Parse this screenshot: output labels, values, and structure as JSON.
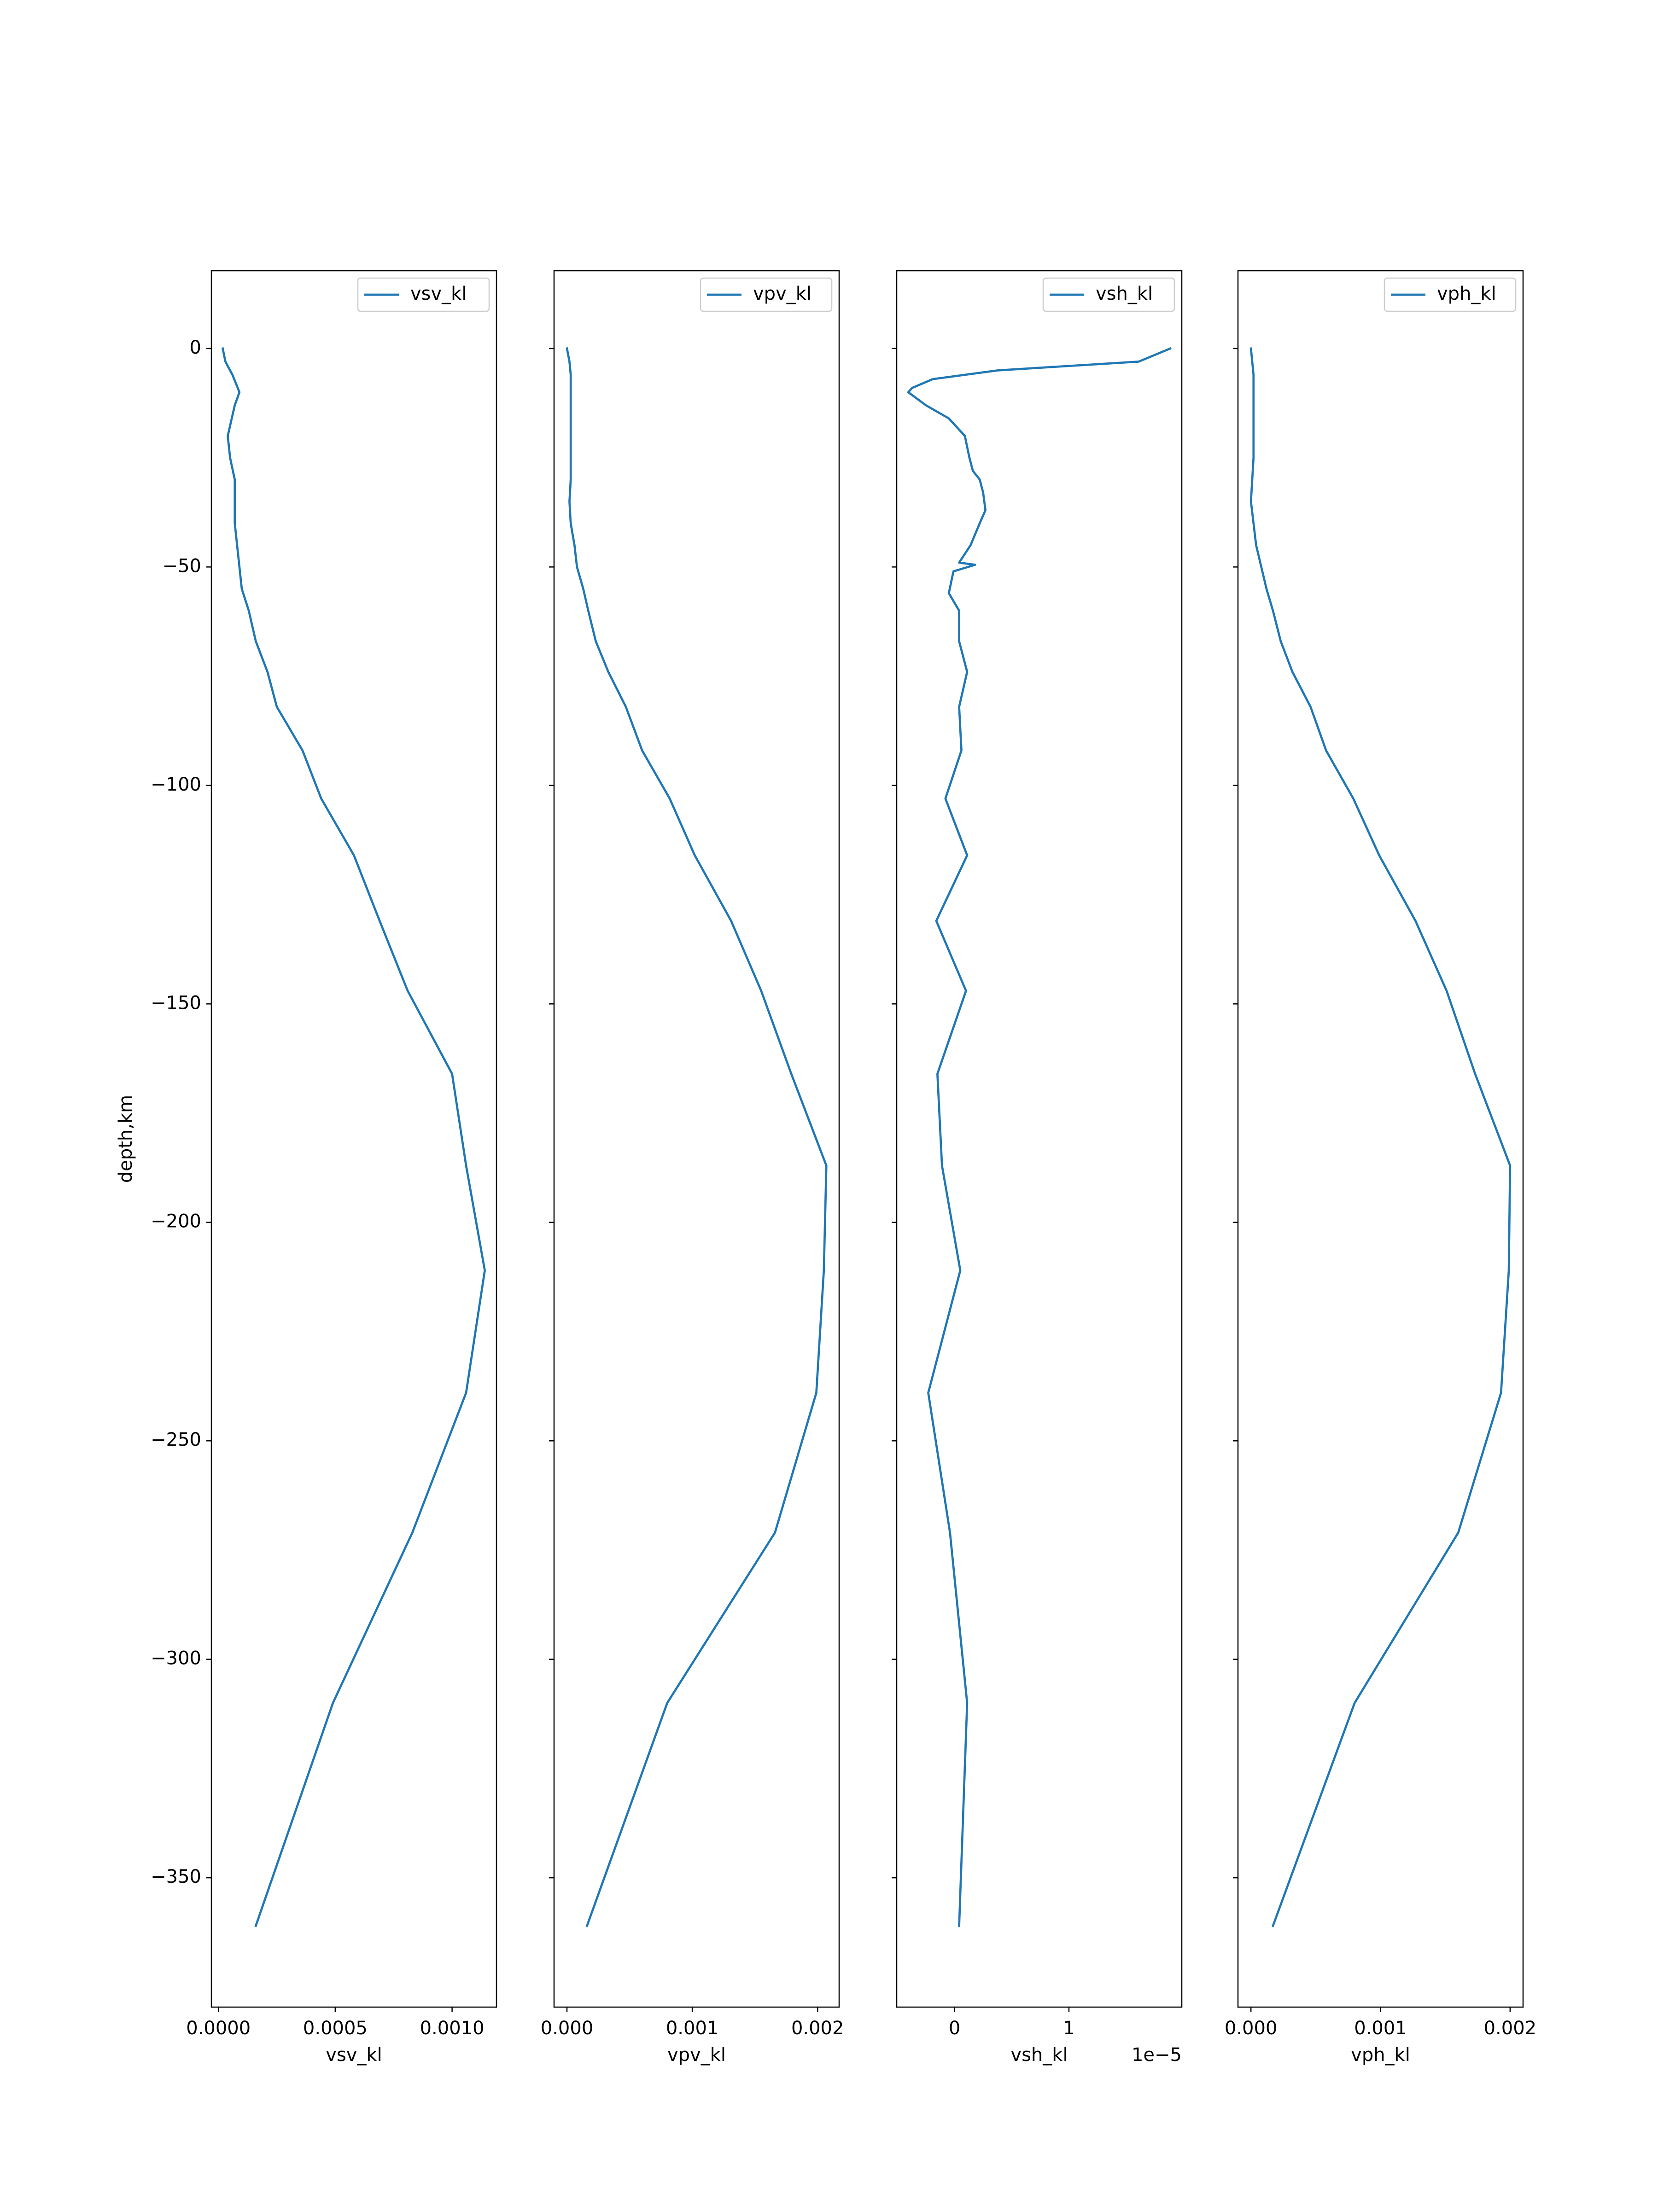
{
  "chart_data": [
    {
      "type": "line",
      "xlabel": "vsv_kl",
      "ylabel": "depth,km",
      "xlim": [
        -3e-05,
        0.00119
      ],
      "xticks": [
        {
          "value": 0,
          "label": "0.0000"
        },
        {
          "value": 0.0005,
          "label": "0.0005"
        },
        {
          "value": 0.001,
          "label": "0.0010"
        }
      ],
      "ylim": [
        -379.6,
        17.8
      ],
      "yticks": [
        0,
        {
          "value": -50,
          "label": "−50"
        },
        {
          "value": -100,
          "label": "−100"
        },
        {
          "value": -150,
          "label": "−150"
        },
        {
          "value": -200,
          "label": "−200"
        },
        {
          "value": -250,
          "label": "−250"
        },
        {
          "value": -300,
          "label": "−300"
        },
        {
          "value": -350,
          "label": "−350"
        }
      ],
      "legend": "upper right",
      "series": [
        {
          "name": "vsv_kl",
          "color": "#1f77b4",
          "x": [
            1.85e-05,
            3e-05,
            6e-05,
            9e-05,
            7e-05,
            4e-05,
            5e-05,
            7e-05,
            7e-05,
            7e-05,
            8e-05,
            9e-05,
            0.0001,
            0.00013,
            0.00016,
            0.00021,
            0.00025,
            0.00036,
            0.00044,
            0.00058,
            0.00069,
            0.00081,
            0.001,
            0.00106,
            0.00114,
            0.00106,
            0.00083,
            0.00049,
            0.00016
          ],
          "values": [
            0,
            -3,
            -6,
            -10,
            -13,
            -20,
            -25,
            -30,
            -35,
            -40,
            -45,
            -50,
            -55,
            -60,
            -67,
            -74,
            -82,
            -92,
            -103,
            -116,
            -131,
            -147,
            -166,
            -187,
            -211,
            -239,
            -271,
            -310,
            -361
          ]
        }
      ]
    },
    {
      "type": "line",
      "xlabel": "vpv_kl",
      "xlim": [
        -0.000103,
        0.002172
      ],
      "xticks": [
        {
          "value": 0,
          "label": "0.000"
        },
        {
          "value": 0.001,
          "label": "0.001"
        },
        {
          "value": 0.002,
          "label": "0.002"
        }
      ],
      "legend": "upper right",
      "series": [
        {
          "name": "vpv_kl",
          "color": "#1f77b4",
          "x": [
            0,
            2e-05,
            3e-05,
            3e-05,
            3e-05,
            3e-05,
            3e-05,
            3e-05,
            2e-05,
            3e-05,
            6e-05,
            8e-05,
            0.00013,
            0.00017,
            0.00023,
            0.00033,
            0.00047,
            0.0006,
            0.00082,
            0.00102,
            0.00131,
            0.00155,
            0.00179,
            0.00207,
            0.00205,
            0.00199,
            0.00166,
            0.0008,
            0.00016
          ],
          "values": [
            0,
            -3,
            -6,
            -10,
            -13,
            -20,
            -25,
            -30,
            -35,
            -40,
            -45,
            -50,
            -55,
            -60,
            -67,
            -74,
            -82,
            -92,
            -103,
            -116,
            -131,
            -147,
            -166,
            -187,
            -211,
            -239,
            -271,
            -310,
            -361
          ]
        }
      ]
    },
    {
      "type": "line",
      "xlabel": "vsh_kl",
      "x_offset_text": "1e−5",
      "xlim": [
        -5.06e-06,
        1.987e-05
      ],
      "xticks": [
        0,
        {
          "value": 1e-05,
          "label": "1"
        }
      ],
      "legend": "upper right",
      "series": [
        {
          "name": "vsh_kl",
          "color": "#1f77b4",
          "x": [
            1.886e-05,
            1.61e-05,
            3.8e-06,
            -1.9e-06,
            -3.7e-06,
            -4.05e-06,
            -2.5e-06,
            -5e-07,
            9e-07,
            1.3e-06,
            1.6e-06,
            2.2e-06,
            2.5e-06,
            2.7e-06,
            2.2e-06,
            1.4e-06,
            4e-07,
            1.8e-06,
            -1e-07,
            -5e-07,
            4e-07,
            4e-07,
            1.1e-06,
            4e-07,
            6e-07,
            -8e-07,
            1.1e-06,
            -1.6e-06,
            1e-06,
            -1.5e-06,
            -1.1e-06,
            5e-07,
            -2.3e-06,
            -4e-07,
            1.1e-06,
            4e-07
          ],
          "values": [
            0,
            -3,
            -5,
            -7,
            -9,
            -10,
            -13,
            -16,
            -20,
            -25,
            -28,
            -30,
            -33,
            -37,
            -40,
            -45,
            -49,
            -49.5,
            -51,
            -56,
            -60,
            -67,
            -74,
            -82,
            -92,
            -103,
            -116,
            -131,
            -147,
            -166,
            -187,
            -211,
            -239,
            -271,
            -310,
            -361
          ]
        }
      ]
    },
    {
      "type": "line",
      "xlabel": "vph_kl",
      "xlim": [
        -0.0001,
        0.0021
      ],
      "xticks": [
        {
          "value": 0,
          "label": "0.000"
        },
        {
          "value": 0.001,
          "label": "0.001"
        },
        {
          "value": 0.002,
          "label": "0.002"
        }
      ],
      "legend": "upper right",
      "series": [
        {
          "name": "vph_kl",
          "color": "#1f77b4",
          "x": [
            0,
            1e-05,
            2e-05,
            2e-05,
            2e-05,
            2e-05,
            2e-05,
            1e-05,
            0,
            2e-05,
            4e-05,
            8e-05,
            0.00012,
            0.00017,
            0.00023,
            0.00032,
            0.00046,
            0.00058,
            0.00079,
            0.00099,
            0.00127,
            0.00151,
            0.00173,
            0.002,
            0.00199,
            0.00193,
            0.0016,
            0.0008,
            0.00017
          ],
          "values": [
            0,
            -3,
            -6,
            -10,
            -13,
            -20,
            -25,
            -30,
            -35,
            -40,
            -45,
            -50,
            -55,
            -60,
            -67,
            -74,
            -82,
            -92,
            -103,
            -116,
            -131,
            -147,
            -166,
            -187,
            -211,
            -239,
            -271,
            -310,
            -361
          ]
        }
      ]
    }
  ]
}
